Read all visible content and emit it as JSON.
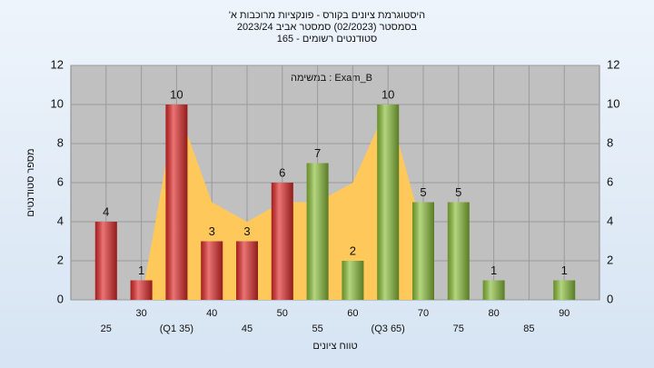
{
  "chart_data": {
    "type": "bar",
    "title": [
      "היסטוגרמת ציונים בקורס - פונקציות מרוכבות א'",
      "בסמסטר  (02/2023)  סמסטר אביב 2023/24",
      "סטודנטים רשומים - 165"
    ],
    "annotation": "במשימה : Exam_B",
    "x_label": "טווח ציונים",
    "y_label": "מספר סטודנטים",
    "x": [
      25,
      30,
      35,
      40,
      45,
      50,
      55,
      60,
      65,
      70,
      75,
      80,
      85,
      90
    ],
    "x_labels": [
      "25",
      "30",
      "(Q1 35)",
      "40",
      "45",
      "50",
      "55",
      "60",
      "(Q3 65)",
      "70",
      "75",
      "80",
      "85",
      "90"
    ],
    "values": [
      4,
      1,
      10,
      3,
      3,
      6,
      7,
      2,
      10,
      5,
      5,
      1,
      0,
      1
    ],
    "colors": [
      "#e02a2a",
      "#e02a2a",
      "#e02a2a",
      "#e02a2a",
      "#e02a2a",
      "#e02a2a",
      "#8cbf3a",
      "#8cbf3a",
      "#8cbf3a",
      "#8cbf3a",
      "#8cbf3a",
      "#8cbf3a",
      "#8cbf3a",
      "#8cbf3a"
    ],
    "area": {
      "color": "#ffc85a",
      "values": [
        null,
        0,
        10,
        5,
        4,
        5,
        5,
        6,
        10,
        3.5,
        null,
        null,
        null,
        null
      ]
    },
    "xlim": [
      20,
      95
    ],
    "ylim": [
      0,
      12
    ],
    "yticks": [
      0,
      2,
      4,
      6,
      8,
      10,
      12
    ],
    "grid": true
  }
}
